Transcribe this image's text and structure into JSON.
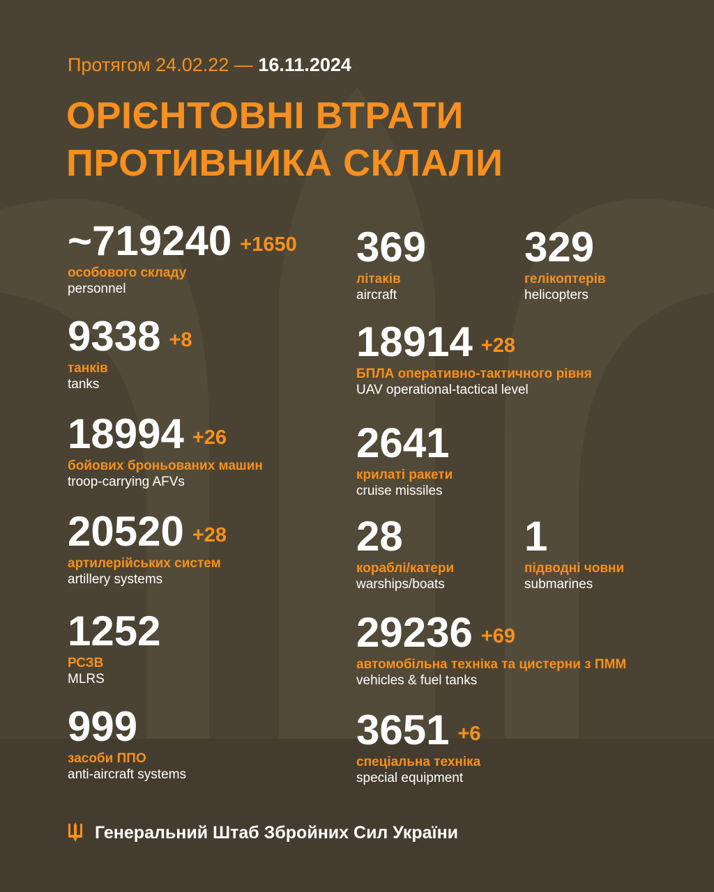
{
  "header": {
    "period_prefix": "Протягом 24.02.22 —",
    "period_end": "16.11.2024",
    "title_line1": "ОРІЄНТОВНІ ВТРАТИ",
    "title_line2": "ПРОТИВНИКА СКЛАЛИ"
  },
  "colors": {
    "background": "#4a4333",
    "accent": "#f7901e",
    "text": "#ffffff"
  },
  "stats": {
    "personnel": {
      "value": "~719240",
      "delta": "+1650",
      "label_ua": "особового складу",
      "label_en": "personnel"
    },
    "tanks": {
      "value": "9338",
      "delta": "+8",
      "label_ua": "танків",
      "label_en": "tanks"
    },
    "afv": {
      "value": "18994",
      "delta": "+26",
      "label_ua": "бойових броньованих машин",
      "label_en": "troop-carrying AFVs"
    },
    "artillery": {
      "value": "20520",
      "delta": "+28",
      "label_ua": "артилерійських систем",
      "label_en": "artillery systems"
    },
    "mlrs": {
      "value": "1252",
      "label_ua": "РСЗВ",
      "label_en": "MLRS"
    },
    "air_defense": {
      "value": "999",
      "label_ua": "засоби ППО",
      "label_en": "anti-aircraft systems"
    },
    "aircraft": {
      "value": "369",
      "label_ua": "літаків",
      "label_en": "aircraft"
    },
    "helicopters": {
      "value": "329",
      "label_ua": "гелікоптерів",
      "label_en": "helicopters"
    },
    "uav": {
      "value": "18914",
      "delta": "+28",
      "label_ua": "БПЛА оперативно-тактичного рівня",
      "label_en": "UAV operational-tactical level"
    },
    "cruise_missiles": {
      "value": "2641",
      "label_ua": "крилаті ракети",
      "label_en": "cruise missiles"
    },
    "warships": {
      "value": "28",
      "label_ua": "кораблі/катери",
      "label_en": "warships/boats"
    },
    "submarines": {
      "value": "1",
      "label_ua": "підводні човни",
      "label_en": "submarines"
    },
    "vehicles": {
      "value": "29236",
      "delta": "+69",
      "label_ua": "автомобільна техніка та цистерни з ПММ",
      "label_en": "vehicles & fuel tanks"
    },
    "special": {
      "value": "3651",
      "delta": "+6",
      "label_ua": "спеціальна техніка",
      "label_en": "special equipment"
    }
  },
  "footer": {
    "icon": "trident-icon",
    "text": "Генеральний Штаб Збройних Сил України"
  }
}
